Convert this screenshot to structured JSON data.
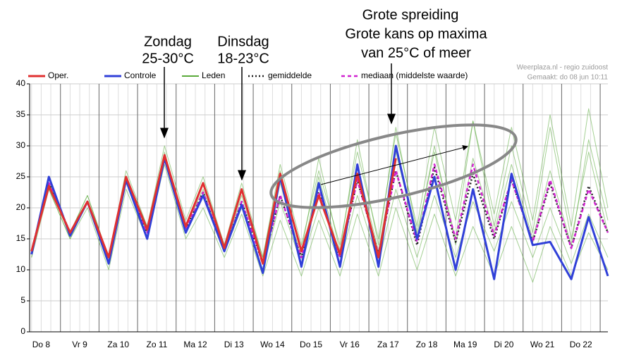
{
  "chart_data": {
    "type": "line",
    "annotations": [
      "Zondag",
      "25-30°C",
      "Dinsdag",
      "18-23°C",
      "Grote spreiding",
      "Grote kans op maxima",
      "van 25°C of meer"
    ],
    "source": "Weerplaza.nl - regio zuidoost",
    "created": "Gemaakt: do 08 jun 10:11",
    "x": [
      0.25,
      0.7,
      1.25,
      1.7,
      2.25,
      2.7,
      3.25,
      3.7,
      4.25,
      4.7,
      5.25,
      5.7,
      6.25,
      6.7,
      7.25,
      7.7,
      8.25,
      8.7,
      9.25,
      9.7,
      10.25,
      10.7,
      11.25,
      11.7,
      12.25,
      12.7,
      13.25,
      13.7,
      14.25,
      14.7,
      15.2
    ],
    "xlim": [
      0.2,
      15.2
    ],
    "xticks": [
      {
        "value": 0.5,
        "label": "Do 8"
      },
      {
        "value": 1.5,
        "label": "Vr 9"
      },
      {
        "value": 2.5,
        "label": "Za 10"
      },
      {
        "value": 3.5,
        "label": "Zo 11"
      },
      {
        "value": 4.5,
        "label": "Ma 12"
      },
      {
        "value": 5.5,
        "label": "Di 13"
      },
      {
        "value": 6.5,
        "label": "Wo 14"
      },
      {
        "value": 7.5,
        "label": "Do 15"
      },
      {
        "value": 8.5,
        "label": "Vr 16"
      },
      {
        "value": 9.5,
        "label": "Za 17"
      },
      {
        "value": 10.5,
        "label": "Zo 18"
      },
      {
        "value": 11.5,
        "label": "Ma 19"
      },
      {
        "value": 12.5,
        "label": "Di 20"
      },
      {
        "value": 13.5,
        "label": "Wo 21"
      },
      {
        "value": 14.5,
        "label": "Do 22"
      }
    ],
    "ylim": [
      0,
      40
    ],
    "yticks": [
      0,
      5,
      10,
      15,
      20,
      25,
      30,
      35,
      40
    ],
    "grid": true,
    "series": [
      {
        "name": "Oper.",
        "color": "#e03030",
        "width": 3,
        "dash": "none",
        "values": [
          13,
          23.5,
          16,
          21,
          12,
          25,
          16.5,
          28.5,
          17,
          24,
          13.5,
          23,
          11,
          25.5,
          13,
          22,
          12.5,
          25.5,
          12,
          28,
          null,
          null,
          null,
          null,
          null,
          null,
          null,
          null,
          null,
          null,
          null
        ]
      },
      {
        "name": "Controle",
        "color": "#3040d8",
        "width": 3,
        "dash": "none",
        "values": [
          12.5,
          25,
          15.5,
          21,
          11,
          24.5,
          15,
          28,
          16,
          22,
          13,
          20.5,
          9.5,
          25,
          10.5,
          24,
          10.5,
          27,
          10.5,
          30,
          15,
          25,
          10,
          23,
          8.5,
          25.5,
          14,
          14.5,
          8.5,
          18.5,
          9
        ]
      },
      {
        "name": "Leden",
        "color": "#5aaa3a",
        "width": 1,
        "dash": "none",
        "members": [
          [
            13,
            24,
            16,
            22,
            12,
            26,
            17,
            30,
            18,
            25,
            14,
            24,
            12,
            27,
            14,
            26,
            14,
            29,
            15,
            32,
            17,
            33,
            18,
            34,
            19,
            33,
            18,
            35,
            17,
            36,
            20
          ],
          [
            12,
            23,
            15,
            20,
            10,
            23,
            15,
            27,
            15,
            20,
            12,
            19,
            9,
            18,
            9,
            18,
            9,
            19,
            9,
            20,
            10,
            19,
            9,
            17,
            9,
            17,
            8,
            17,
            9,
            16,
            10
          ],
          [
            13,
            24,
            16,
            21,
            12,
            25,
            16,
            28,
            17,
            23,
            13,
            22,
            11,
            24,
            12,
            25,
            12,
            27,
            13,
            29,
            15,
            30,
            14,
            28,
            16,
            27,
            15,
            26,
            14,
            31,
            18
          ],
          [
            13,
            23,
            15,
            21,
            11,
            24,
            16,
            29,
            16,
            22,
            13,
            20,
            10,
            21,
            11,
            20,
            11,
            22,
            11,
            23,
            12,
            22,
            12,
            21,
            13,
            21,
            12,
            20,
            11,
            19,
            12
          ],
          [
            12,
            24,
            16,
            22,
            12,
            25,
            17,
            28,
            17,
            24,
            14,
            23,
            12,
            26,
            13,
            28,
            13,
            31,
            14,
            33,
            16,
            29,
            15,
            34,
            17,
            30,
            16,
            33,
            15,
            29,
            16
          ]
        ]
      },
      {
        "name": "gemiddelde",
        "color": "#222222",
        "width": 2.5,
        "dash": "2 3",
        "values": [
          13,
          24,
          16,
          21,
          12,
          24.5,
          16,
          28,
          16.5,
          22.5,
          13,
          21,
          11,
          22,
          12,
          22.5,
          12,
          24.5,
          12.5,
          26,
          14,
          26.5,
          14.5,
          25.5,
          15,
          24.5,
          14.5,
          24,
          13.5,
          23.5,
          16
        ]
      },
      {
        "name": "mediaan (middelste waarde)",
        "color": "#d020d0",
        "width": 2.5,
        "dash": "5 4",
        "values": [
          13,
          24,
          16,
          21,
          12,
          24.5,
          16,
          28,
          16.5,
          22.5,
          13,
          21,
          11,
          22,
          12,
          22.5,
          12,
          24.5,
          12.5,
          26,
          14.5,
          27,
          15,
          27,
          15.5,
          24.5,
          14.5,
          24.5,
          13.5,
          23,
          16
        ]
      }
    ]
  }
}
